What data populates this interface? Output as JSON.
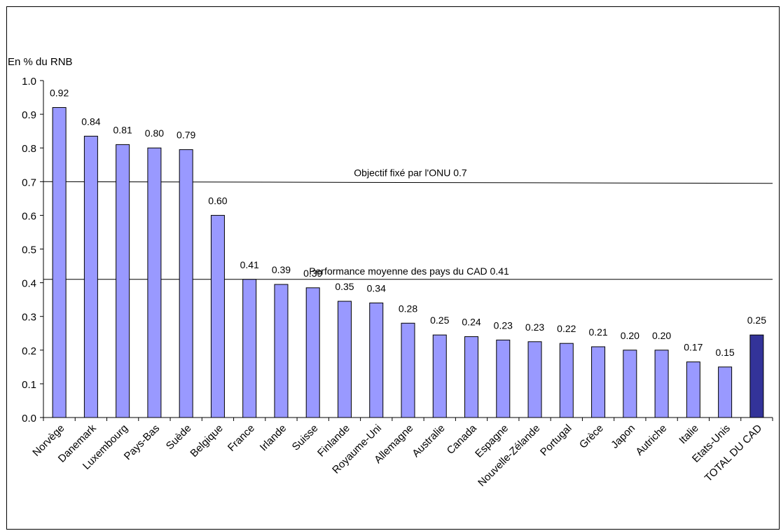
{
  "chart_data": {
    "type": "bar",
    "ylabel": "En % du RNB",
    "ylim": [
      0,
      1.0
    ],
    "yticks": [
      "0.0",
      "0.1",
      "0.2",
      "0.3",
      "0.4",
      "0.5",
      "0.6",
      "0.7",
      "0.8",
      "0.9",
      "1.0"
    ],
    "grid": false,
    "categories": [
      "Norvège",
      "Danemark",
      "Luxembourg",
      "Pays-Bas",
      "Suède",
      "Belgique",
      "France",
      "Irlande",
      "Suisse",
      "Finlande",
      "Royaume-Uni",
      "Allemagne",
      "Australie",
      "Canada",
      "Espagne",
      "Nouvelle-Zélande",
      "Portugal",
      "Grèce",
      "Japon",
      "Autriche",
      "Italie",
      "Etats-Unis",
      "TOTAL DU CAD"
    ],
    "values": [
      0.92,
      0.835,
      0.81,
      0.8,
      0.795,
      0.6,
      0.41,
      0.395,
      0.385,
      0.345,
      0.34,
      0.28,
      0.245,
      0.24,
      0.23,
      0.225,
      0.22,
      0.21,
      0.2,
      0.2,
      0.165,
      0.15,
      0.245
    ],
    "value_labels": [
      "0.92",
      "0.84",
      "0.81",
      "0.80",
      "0.79",
      "0.60",
      "0.41",
      "0.39",
      "0.39",
      "0.35",
      "0.34",
      "0.28",
      "0.25",
      "0.24",
      "0.23",
      "0.23",
      "0.22",
      "0.21",
      "0.20",
      "0.20",
      "0.17",
      "0.15",
      "0.25"
    ],
    "highlight_category": "TOTAL DU CAD",
    "reference_lines": [
      {
        "label": "Objectif fixé par l'ONU 0.7",
        "value_start": 0.7,
        "value_end": 0.695
      },
      {
        "label": "Performance moyenne des pays du CAD 0.41",
        "value_start": 0.41,
        "value_end": 0.41
      }
    ],
    "colors": {
      "bar": "#9999ff",
      "highlight": "#333399",
      "outline": "#000000"
    }
  }
}
